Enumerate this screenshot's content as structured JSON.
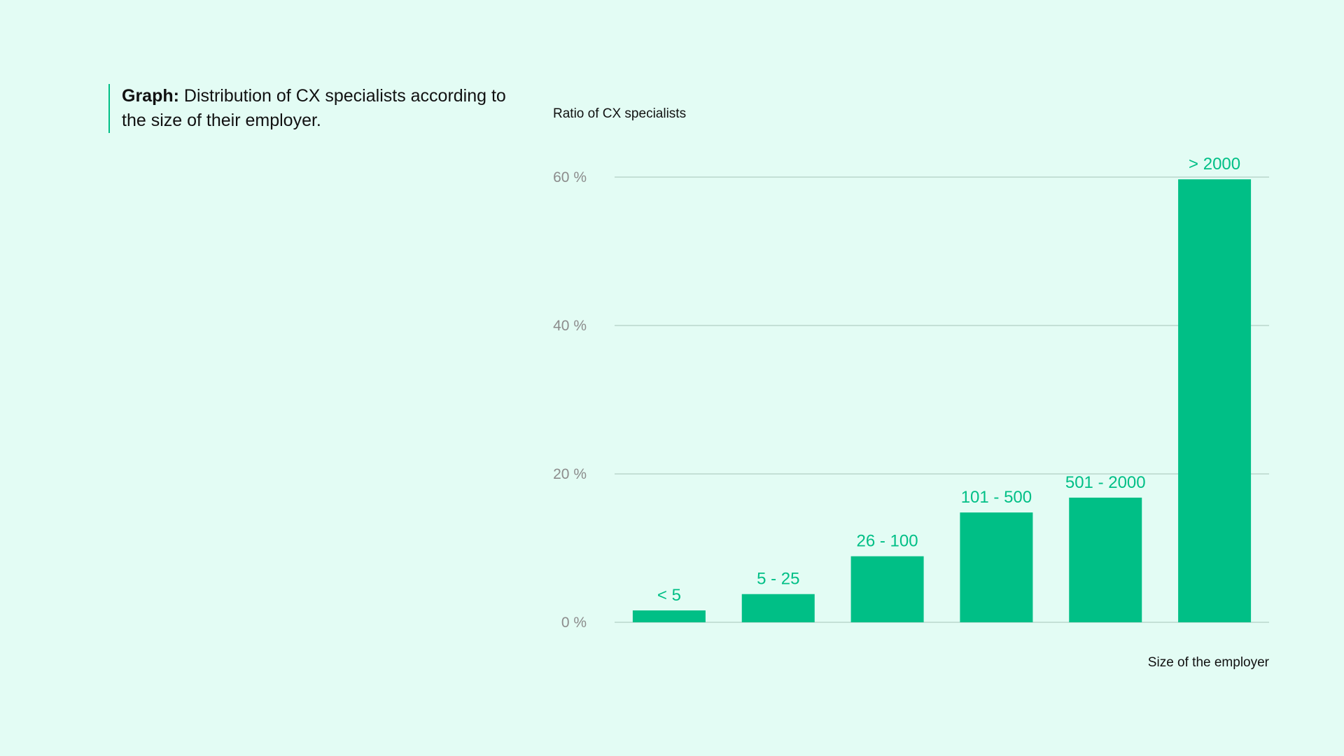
{
  "caption": {
    "prefix": "Graph:",
    "text": "Distribution of CX specialists according to the size of their employer."
  },
  "colors": {
    "background": "#e3fcf4",
    "bar": "#00bf86",
    "grid": "#b9d6cc",
    "tick_text": "#8c8c8c"
  },
  "chart_data": {
    "type": "bar",
    "ylabel": "Ratio of CX specialists",
    "xlabel": "Size of the employer",
    "ylim": [
      0,
      60
    ],
    "yticks": [
      0,
      20,
      40,
      60
    ],
    "ytick_labels": [
      "0 %",
      "20 %",
      "40 %",
      "60 %"
    ],
    "grid": true,
    "categories": [
      "< 5",
      "5 - 25",
      "26 - 100",
      "101 - 500",
      "501 - 2000",
      "> 2000"
    ],
    "values": [
      1.6,
      3.8,
      8.9,
      14.8,
      16.8,
      59.7
    ]
  }
}
